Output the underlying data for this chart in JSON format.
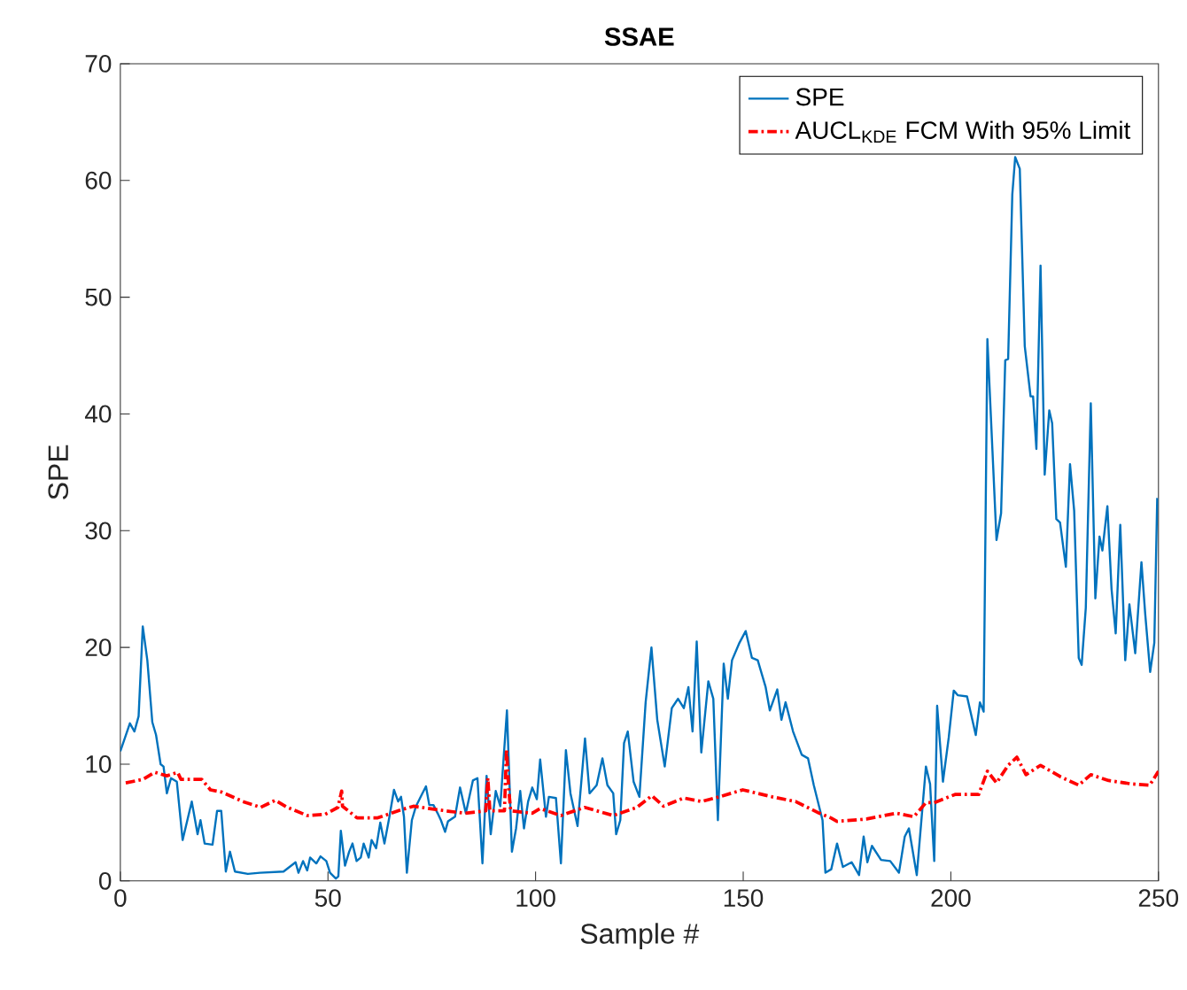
{
  "chart_data": {
    "type": "line",
    "title": "SSAE",
    "xlabel": "Sample #",
    "ylabel": "SPE",
    "xlim": [
      0,
      250
    ],
    "ylim": [
      0,
      70
    ],
    "xticks": [
      0,
      50,
      100,
      150,
      200,
      250
    ],
    "yticks": [
      0,
      10,
      20,
      30,
      40,
      50,
      60,
      70
    ],
    "grid": false,
    "legend": "top right",
    "series": [
      {
        "name": "SPE",
        "color": "#0072bd",
        "line_style": "solid",
        "x": [
          0,
          2.3,
          3.4,
          4.4,
          5.4,
          6.5,
          7.7,
          8.6,
          9.7,
          10.4,
          11.2,
          12.2,
          13.6,
          15,
          17.2,
          18.6,
          19.3,
          20.3,
          22.2,
          23.3,
          24.3,
          25.4,
          26.4,
          27.6,
          30.7,
          33.6,
          39.3,
          42.2,
          42.9,
          44,
          45,
          45.7,
          47.2,
          48.2,
          49.6,
          50.5,
          51.9,
          52.5,
          53.1,
          54.1,
          55.1,
          55.9,
          56.9,
          57.9,
          58.6,
          59.8,
          60.5,
          61.6,
          62.6,
          63.6,
          64.8,
          65.9,
          66.9,
          67.6,
          68.3,
          69,
          70.2,
          71.2,
          72.6,
          73.6,
          74.4,
          75.4,
          76.4,
          77.2,
          78.2,
          78.9,
          80.6,
          81.8,
          83.2,
          84.9,
          86,
          87.2,
          88.2,
          89.2,
          90.4,
          91.5,
          93.1,
          94.3,
          95.3,
          96.3,
          97.2,
          98.2,
          99.2,
          100.3,
          101.1,
          102.5,
          103.2,
          104.9,
          106.1,
          107.3,
          108.4,
          110.1,
          111.9,
          113,
          114.7,
          116.1,
          117.3,
          118.7,
          119.4,
          120.4,
          121.3,
          122.2,
          123.6,
          125,
          126.5,
          127.9,
          129.3,
          131.1,
          132.8,
          134.3,
          135.7,
          136.8,
          137.8,
          138.8,
          139.9,
          141.6,
          142.8,
          143.9,
          145.3,
          146.3,
          147.3,
          149.1,
          150.6,
          152.1,
          153.5,
          155.4,
          156.4,
          158.2,
          159.2,
          160.2,
          162,
          164.1,
          165.6,
          167,
          169.1,
          169.8,
          171.2,
          172.6,
          174,
          176.1,
          177.9,
          179,
          179.9,
          181,
          183.2,
          185.4,
          187.5,
          188.9,
          189.9,
          191.8,
          194,
          195,
          196,
          196.7,
          198.1,
          199.5,
          200.7,
          201.7,
          203.9,
          206,
          207,
          207.9,
          208.8,
          211,
          212.1,
          213.1,
          213.8,
          214.8,
          215.5,
          216.6,
          217.8,
          219.2,
          219.8,
          220.6,
          221.6,
          222.6,
          223.7,
          224.4,
          225.4,
          226.3,
          227.7,
          228.7,
          229.7,
          230.8,
          231.5,
          232.5,
          233.7,
          234.8,
          235.8,
          236.5,
          237.7,
          238.7,
          239.7,
          240.8,
          242,
          243,
          244.4,
          245.9,
          246.8,
          248,
          249,
          249.7
        ],
        "values": [
          11.1,
          13.5,
          12.8,
          14.1,
          21.8,
          18.9,
          13.6,
          12.5,
          10.0,
          9.8,
          7.5,
          8.8,
          8.5,
          3.5,
          6.8,
          4.0,
          5.2,
          3.2,
          3.1,
          6.0,
          6.0,
          0.8,
          2.5,
          0.8,
          0.6,
          0.7,
          0.8,
          1.6,
          0.7,
          1.7,
          0.9,
          2.0,
          1.5,
          2.1,
          1.7,
          0.7,
          0.2,
          0.4,
          4.3,
          1.3,
          2.5,
          3.2,
          1.7,
          2.0,
          3.2,
          2.0,
          3.5,
          2.8,
          5.0,
          3.2,
          5.5,
          7.8,
          6.8,
          7.2,
          5.5,
          0.7,
          5.2,
          6.4,
          7.4,
          8.1,
          6.5,
          6.5,
          5.8,
          5.2,
          4.2,
          5.1,
          5.5,
          8.0,
          5.8,
          8.6,
          8.8,
          1.5,
          9.0,
          4.0,
          7.7,
          6.4,
          14.6,
          2.5,
          4.5,
          7.7,
          4.5,
          6.8,
          8.0,
          7.0,
          10.4,
          5.5,
          7.2,
          7.1,
          1.5,
          11.2,
          7.5,
          4.7,
          12.2,
          7.5,
          8.2,
          10.5,
          8.2,
          7.5,
          4.0,
          5.2,
          11.8,
          12.8,
          8.5,
          7.2,
          15.3,
          20.0,
          13.8,
          9.8,
          14.8,
          15.6,
          14.8,
          16.6,
          12.8,
          20.5,
          11.0,
          17.1,
          15.6,
          5.2,
          18.6,
          15.6,
          18.9,
          20.4,
          21.4,
          19.1,
          18.9,
          16.6,
          14.6,
          16.4,
          13.8,
          15.3,
          12.8,
          10.8,
          10.5,
          8.2,
          5.2,
          0.7,
          1.0,
          3.2,
          1.2,
          1.6,
          0.5,
          3.8,
          1.6,
          3.0,
          1.8,
          1.7,
          0.7,
          3.8,
          4.5,
          0.5,
          9.8,
          8.3,
          1.7,
          15.0,
          8.5,
          12.3,
          16.3,
          15.9,
          15.8,
          12.5,
          15.3,
          14.5,
          46.4,
          29.2,
          31.5,
          44.6,
          44.7,
          58.8,
          62,
          61,
          45.8,
          41.5,
          41.5,
          37,
          52.7,
          34.8,
          40.3,
          39.2,
          31.0,
          30.7,
          26.9,
          35.7,
          31.7,
          19.1,
          18.5,
          23.4,
          40.9,
          24.2,
          29.5,
          28.3,
          32.1,
          25.0,
          21.2,
          30.5,
          18.9,
          23.7,
          19.5,
          27.3,
          22.9,
          17.9,
          20.4,
          32.8
        ]
      },
      {
        "name": "AUCL$_{KDE}$ FCM With 95% Limit",
        "color": "#ff0000",
        "line_style": "dashdot",
        "x": [
          1.3,
          5.5,
          8.3,
          11.2,
          13.8,
          14.6,
          19.6,
          21.7,
          24.5,
          29.5,
          33.8,
          37.3,
          40.2,
          45,
          49.3,
          52.4,
          53.3,
          53.5,
          57,
          62,
          67.7,
          70.6,
          76.3,
          80.6,
          83,
          88,
          88.5,
          89,
          92.5,
          93,
          93.5,
          94,
          99.2,
          101.1,
          106.1,
          111.8,
          118.7,
          124.4,
          128,
          130.8,
          135.7,
          140,
          144.2,
          149.9,
          157,
          162.6,
          168.3,
          171.1,
          172.6,
          179.7,
          186.8,
          191.1,
          194,
          196,
          201,
          206.7,
          208.8,
          211,
          213.8,
          215.9,
          218.1,
          221.6,
          226.5,
          230.8,
          233.7,
          238,
          243.6,
          247.9,
          250
        ],
        "values": [
          8.4,
          8.7,
          9.3,
          9.0,
          9.3,
          8.7,
          8.7,
          7.8,
          7.6,
          6.8,
          6.3,
          6.9,
          6.3,
          5.6,
          5.7,
          6.3,
          7.7,
          6.4,
          5.4,
          5.4,
          6.1,
          6.4,
          6.1,
          5.9,
          5.8,
          6.0,
          8.8,
          6.0,
          6.0,
          11.3,
          8.0,
          6.0,
          5.8,
          6.2,
          5.6,
          6.3,
          5.6,
          6.3,
          7.3,
          6.4,
          7.1,
          6.8,
          7.2,
          7.8,
          7.2,
          6.8,
          5.8,
          5.4,
          5.1,
          5.3,
          5.8,
          5.5,
          6.7,
          6.7,
          7.4,
          7.4,
          9.4,
          8.4,
          9.9,
          10.6,
          9.1,
          9.9,
          8.9,
          8.2,
          9.1,
          8.6,
          8.3,
          8.2,
          9.4
        ]
      }
    ]
  }
}
